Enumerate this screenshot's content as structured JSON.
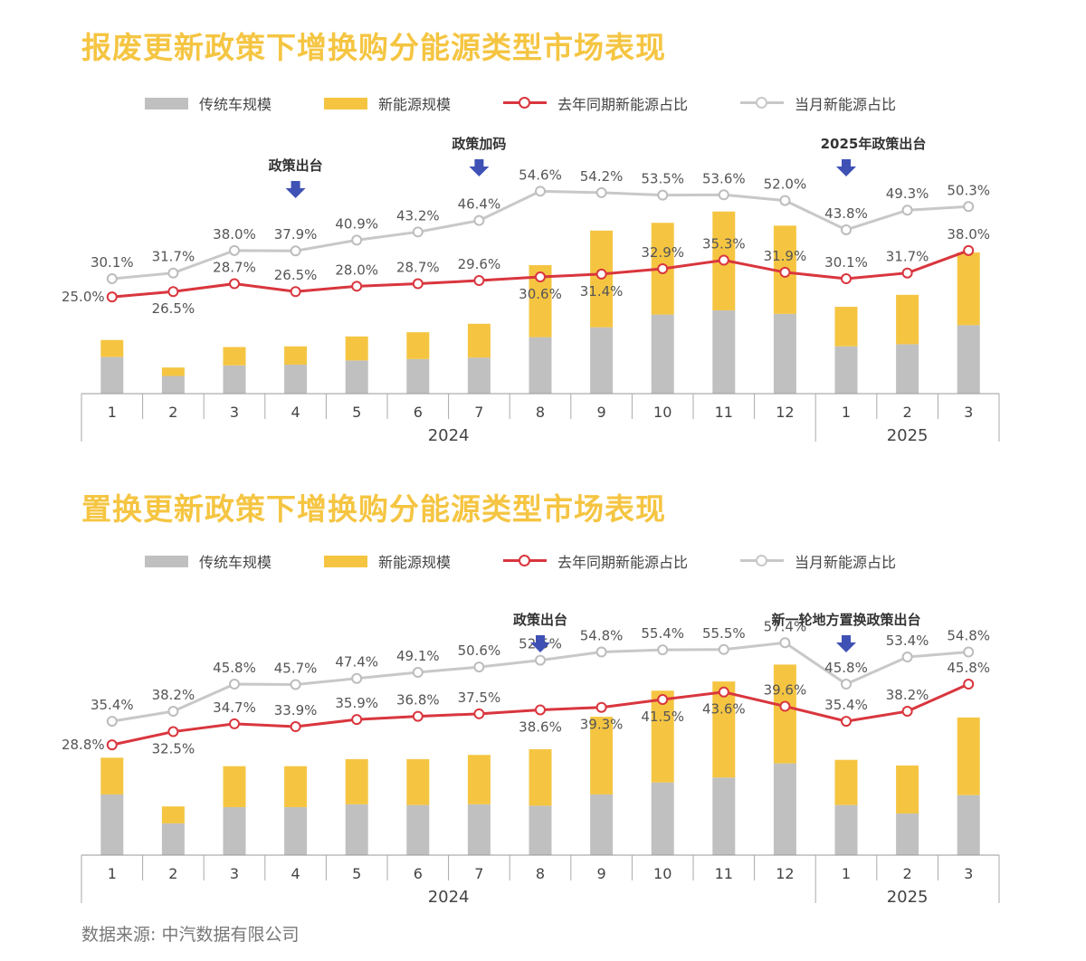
{
  "legend": {
    "traditional": "传统车规模",
    "nev": "新能源规模",
    "last_year": "去年同期新能源占比",
    "this_month": "当月新能源占比"
  },
  "colors": {
    "title": "#f5c542",
    "traditional": "#c0c0c0",
    "nev": "#f5c542",
    "last_year_line": "#d9363e",
    "this_month_line": "#c8c8c8",
    "arrow": "#3f51b5"
  },
  "source": "数据来源: 中汽数据有限公司",
  "chart_data": [
    {
      "type": "bar",
      "title": "报废更新政策下增换购分能源类型市场表现",
      "categories": [
        "1",
        "2",
        "3",
        "4",
        "5",
        "6",
        "7",
        "8",
        "9",
        "10",
        "11",
        "12",
        "1",
        "2",
        "3"
      ],
      "groups": [
        {
          "label": "2024",
          "from": 0,
          "to": 11
        },
        {
          "label": "2025",
          "from": 12,
          "to": 14
        }
      ],
      "series": [
        {
          "name": "传统车规模",
          "values": [
            52,
            25,
            40,
            41,
            47,
            49,
            51,
            80,
            94,
            112,
            118,
            113,
            67,
            70,
            97
          ]
        },
        {
          "name": "新能源规模",
          "values": [
            24,
            12,
            26,
            26,
            34,
            38,
            48,
            102,
            137,
            130,
            140,
            125,
            56,
            70,
            103
          ]
        },
        {
          "name": "去年同期新能源占比",
          "values": [
            25.0,
            26.5,
            28.7,
            26.5,
            28.0,
            28.7,
            29.6,
            30.6,
            31.4,
            32.9,
            35.3,
            31.9,
            30.1,
            31.7,
            38.0
          ]
        },
        {
          "name": "当月新能源占比",
          "values": [
            30.1,
            31.7,
            38.0,
            37.9,
            40.9,
            43.2,
            46.4,
            54.6,
            54.2,
            53.5,
            53.6,
            52.0,
            43.8,
            49.3,
            50.3
          ]
        }
      ],
      "line_labels": {
        "last_year": [
          "25.0%",
          "26.5%",
          "28.7%",
          "26.5%",
          "28.0%",
          "28.7%",
          "29.6%",
          "30.6%",
          "31.4%",
          "32.9%",
          "35.3%",
          "31.9%",
          "30.1%",
          "31.7%",
          "38.0%"
        ],
        "this_month": [
          "30.1%",
          "31.7%",
          "38.0%",
          "37.9%",
          "40.9%",
          "43.2%",
          "46.4%",
          "54.6%",
          "54.2%",
          "53.5%",
          "53.6%",
          "52.0%",
          "43.8%",
          "49.3%",
          "50.3%"
        ]
      },
      "annotations": [
        {
          "index": 3,
          "text": "政策出台"
        },
        {
          "index": 6,
          "text": "政策加码"
        },
        {
          "index": 12,
          "text": "2025年政策出台"
        }
      ]
    },
    {
      "type": "bar",
      "title": "置换更新政策下增换购分能源类型市场表现",
      "categories": [
        "1",
        "2",
        "3",
        "4",
        "5",
        "6",
        "7",
        "8",
        "9",
        "10",
        "11",
        "12",
        "1",
        "2",
        "3"
      ],
      "groups": [
        {
          "label": "2024",
          "from": 0,
          "to": 11
        },
        {
          "label": "2025",
          "from": 12,
          "to": 14
        }
      ],
      "series": [
        {
          "name": "传统车规模",
          "values": [
            86,
            45,
            68,
            68,
            72,
            71,
            72,
            70,
            86,
            103,
            110,
            130,
            71,
            59,
            85
          ]
        },
        {
          "name": "新能源规模",
          "values": [
            52,
            24,
            58,
            58,
            64,
            65,
            70,
            80,
            110,
            130,
            136,
            140,
            64,
            68,
            110
          ]
        },
        {
          "name": "去年同期新能源占比",
          "values": [
            28.8,
            32.5,
            34.7,
            33.9,
            35.9,
            36.8,
            37.5,
            38.6,
            39.3,
            41.5,
            43.6,
            39.6,
            35.4,
            38.2,
            45.8
          ]
        },
        {
          "name": "当月新能源占比",
          "values": [
            35.4,
            38.2,
            45.8,
            45.7,
            47.4,
            49.1,
            50.6,
            52.5,
            54.8,
            55.4,
            55.5,
            57.4,
            45.8,
            53.4,
            54.8
          ]
        }
      ],
      "line_labels": {
        "last_year": [
          "28.8%",
          "32.5%",
          "34.7%",
          "33.9%",
          "35.9%",
          "36.8%",
          "37.5%",
          "38.6%",
          "39.3%",
          "41.5%",
          "43.6%",
          "39.6%",
          "35.4%",
          "38.2%",
          "45.8%"
        ],
        "this_month": [
          "35.4%",
          "38.2%",
          "45.8%",
          "45.7%",
          "47.4%",
          "49.1%",
          "50.6%",
          "52.5%",
          "54.8%",
          "55.4%",
          "55.5%",
          "57.4%",
          "45.8%",
          "53.4%",
          "54.8%"
        ]
      },
      "annotations": [
        {
          "index": 7,
          "text": "政策出台"
        },
        {
          "index": 12,
          "text": "新一轮地方置换政策出台"
        }
      ]
    }
  ]
}
